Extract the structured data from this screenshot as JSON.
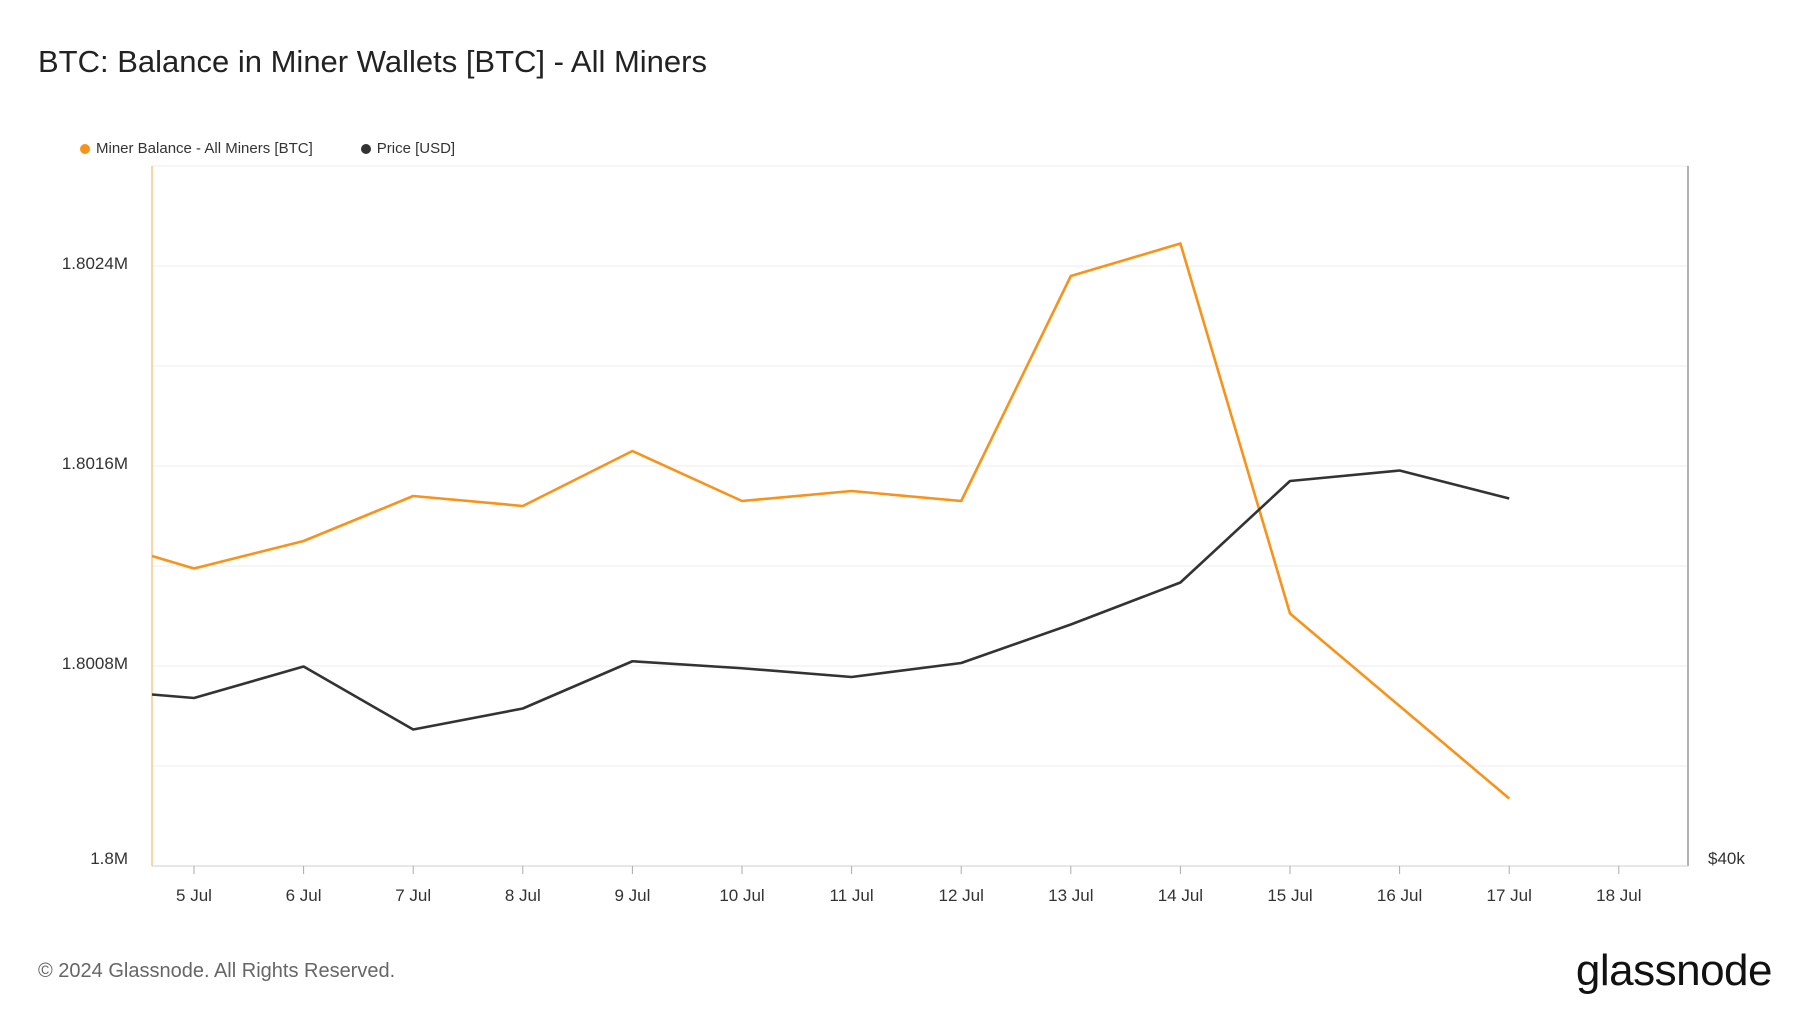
{
  "title": "BTC: Balance in Miner Wallets [BTC] - All Miners",
  "legend": {
    "balance": "Miner Balance - All Miners [BTC]",
    "price": "Price [USD]"
  },
  "footer": "© 2024 Glassnode. All Rights Reserved.",
  "brand": "glassnode",
  "colors": {
    "balance": "#f7931a",
    "price": "#333333",
    "grid": "#ececec"
  },
  "chart_data": {
    "type": "line",
    "x": [
      "4.6 Jul",
      "5 Jul",
      "6 Jul",
      "7 Jul",
      "8 Jul",
      "9 Jul",
      "10 Jul",
      "11 Jul",
      "12 Jul",
      "13 Jul",
      "14 Jul",
      "15 Jul",
      "16 Jul",
      "17 Jul"
    ],
    "x_ticks": [
      "5 Jul",
      "6 Jul",
      "7 Jul",
      "8 Jul",
      "9 Jul",
      "10 Jul",
      "11 Jul",
      "12 Jul",
      "13 Jul",
      "14 Jul",
      "15 Jul",
      "16 Jul",
      "17 Jul",
      "18 Jul"
    ],
    "y_ticks": [
      "1.8M",
      "1.8008M",
      "1.8016M",
      "1.8024M"
    ],
    "y_right_ticks": [
      "$40k"
    ],
    "ylim": [
      1.8,
      1.8028
    ],
    "series": [
      {
        "name": "Miner Balance - All Miners [BTC]",
        "axis": "left",
        "values": [
          1.80124,
          1.80119,
          1.8013,
          1.80148,
          1.80144,
          1.80166,
          1.80146,
          1.8015,
          1.80146,
          1.80236,
          1.80249,
          1.80101,
          1.80064,
          1.80027
        ]
      },
      {
        "name": "Price [USD]",
        "axis": "right",
        "values": [
          56900,
          56800,
          57700,
          55900,
          56500,
          57850,
          57650,
          57400,
          57800,
          58900,
          60100,
          63000,
          63300,
          62500
        ]
      }
    ]
  }
}
